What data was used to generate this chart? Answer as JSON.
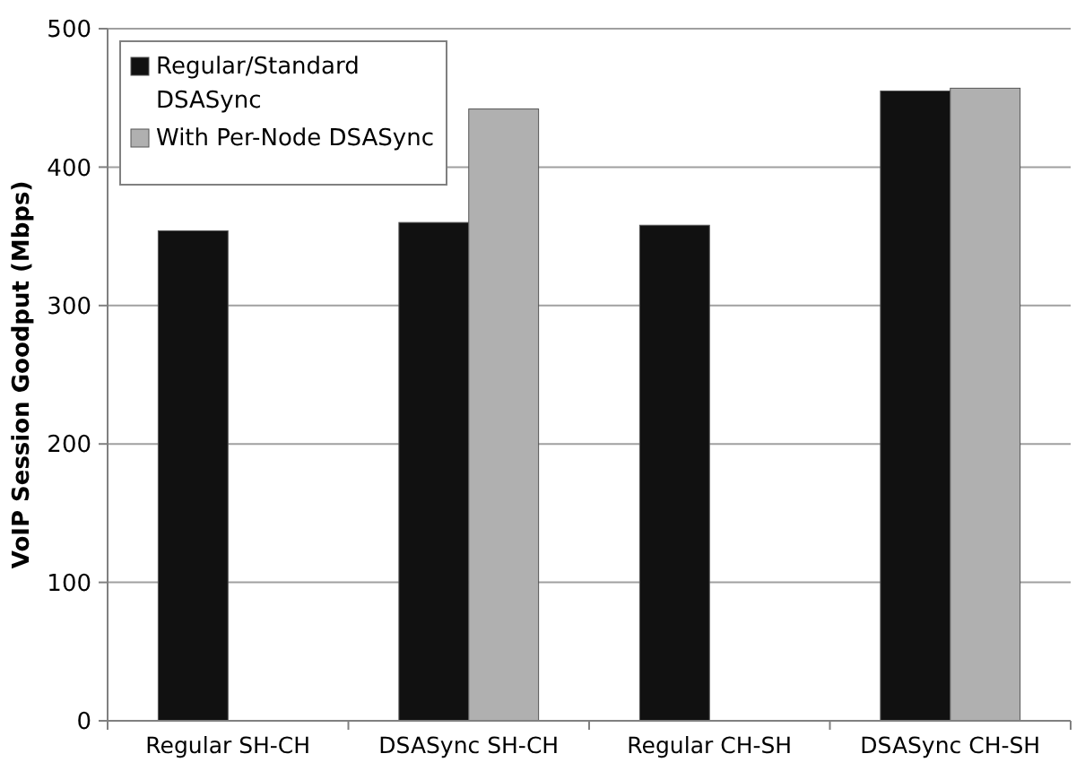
{
  "chart_data": {
    "type": "bar",
    "ylabel": "VoIP Session Goodput (Mbps)",
    "categories": [
      "Regular SH-CH",
      "DSASync SH-CH",
      "Regular CH-SH",
      "DSASync CH-SH"
    ],
    "series": [
      {
        "name": "Regular/Standard DSASync",
        "color": "#111111",
        "values": [
          354,
          360,
          358,
          455
        ]
      },
      {
        "name": "With Per-Node DSASync",
        "color": "#b0b0b0",
        "values": [
          null,
          442,
          null,
          457
        ]
      }
    ],
    "ylim": [
      0,
      500
    ],
    "yticks": [
      0,
      100,
      200,
      300,
      400,
      500
    ],
    "grid": "y",
    "legend": "top left"
  }
}
